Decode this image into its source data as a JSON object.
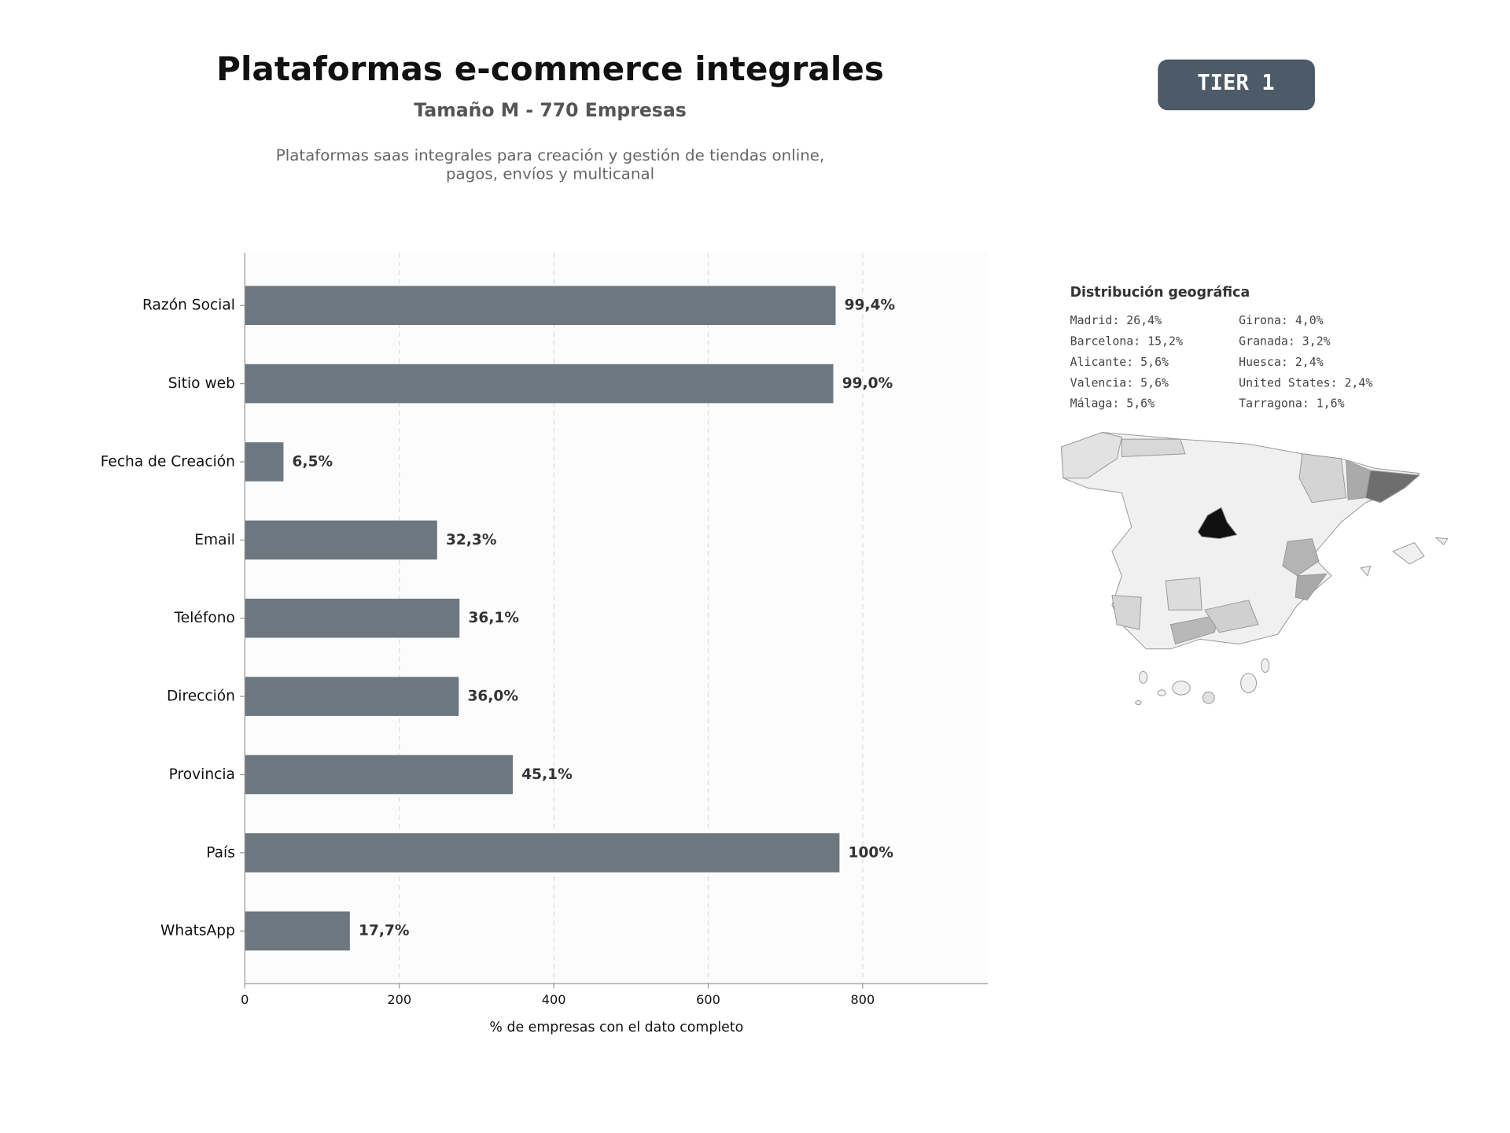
{
  "chart_data": {
    "type": "bar",
    "orientation": "horizontal",
    "title": "Plataformas e-commerce integrales",
    "subtitle": "Tamaño M - 770 Empresas",
    "description": [
      "Plataformas saas integrales para creación y gestión de tiendas online,",
      "pagos, envíos y multicanal"
    ],
    "badge": "TIER 1",
    "categories": [
      "Razón Social",
      "Sitio web",
      "Fecha de Creación",
      "Email",
      "Teléfono",
      "Dirección",
      "Provincia",
      "País",
      "WhatsApp"
    ],
    "values": [
      765,
      762,
      50,
      249,
      278,
      277,
      347,
      770,
      136
    ],
    "value_labels": [
      "99,4%",
      "99,0%",
      "6,5%",
      "32,3%",
      "36,1%",
      "36,0%",
      "45,1%",
      "100%",
      "17,7%"
    ],
    "color": "#6c7780",
    "xlim": [
      0,
      962.5
    ],
    "xticks": [
      0,
      200,
      400,
      600,
      800
    ],
    "xlabel": "% de empresas con el dato completo",
    "grid": true,
    "geo": {
      "title": "Distribución geográfica",
      "items": [
        "Madrid: 26,4%",
        "Barcelona: 15,2%",
        "Alicante: 5,6%",
        "Valencia: 5,6%",
        "Málaga: 5,6%",
        "Girona: 4,0%",
        "Granada: 3,2%",
        "Huesca: 2,4%",
        "United States: 2,4%",
        "Tarragona: 1,6%"
      ]
    }
  }
}
